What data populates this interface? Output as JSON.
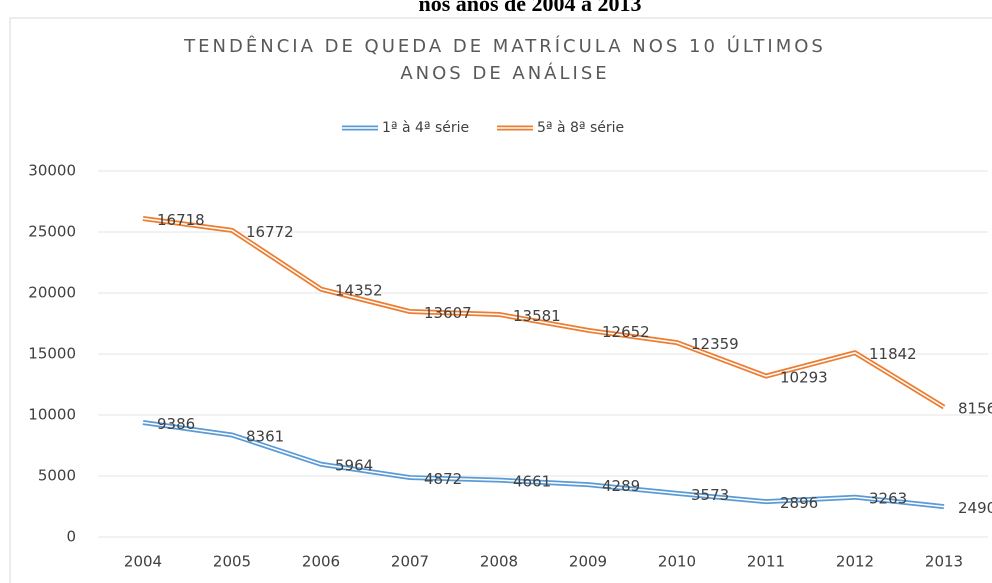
{
  "header": {
    "title": "nos anos de 2004 a 2013"
  },
  "chart_data": {
    "type": "line",
    "stacked": true,
    "title": [
      "TENDÊNCIA DE QUEDA DE MATRÍCULA NOS 10 ÚLTIMOS",
      "ANOS DE ANÁLISE"
    ],
    "categories": [
      "2004",
      "2005",
      "2006",
      "2007",
      "2008",
      "2009",
      "2010",
      "2011",
      "2012",
      "2013"
    ],
    "series": [
      {
        "name": "1ª à 4ª série",
        "color": "#5b9bd5",
        "values": [
          9386,
          8361,
          5964,
          4872,
          4661,
          4289,
          3573,
          2896,
          3263,
          2490
        ]
      },
      {
        "name": "5ª à 8ª série",
        "color": "#ed7d31",
        "values": [
          16718,
          16772,
          14352,
          13607,
          13581,
          12652,
          12359,
          10293,
          11842,
          8156
        ]
      }
    ],
    "ylim": [
      0,
      30000
    ],
    "yticks": [
      0,
      5000,
      10000,
      15000,
      20000,
      25000,
      30000
    ],
    "grid": true,
    "legend": "top"
  }
}
